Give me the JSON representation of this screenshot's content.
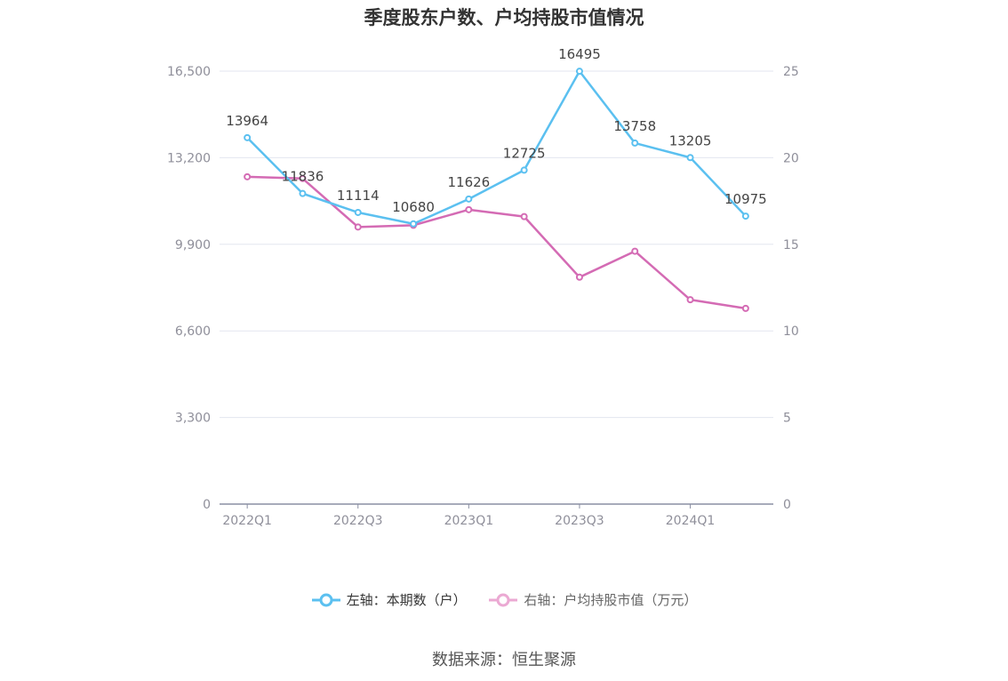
{
  "chart_data": {
    "type": "line",
    "title": "季度股东户数、户均持股市值情况",
    "categories": [
      "2022Q1",
      "2022Q2",
      "2022Q3",
      "2022Q4",
      "2023Q1",
      "2023Q2",
      "2023Q3",
      "2023Q4",
      "2024Q1",
      "2024Q2"
    ],
    "x_tick_labels": [
      "2022Q1",
      "2022Q3",
      "2023Q1",
      "2023Q3",
      "2024Q1"
    ],
    "left_axis": {
      "ylim": [
        0,
        16500
      ],
      "ticks": [
        "0",
        "3,300",
        "6,600",
        "9,900",
        "13,200",
        "16,500"
      ],
      "tick_values": [
        0,
        3300,
        6600,
        9900,
        13200,
        16500
      ]
    },
    "right_axis": {
      "ylim": [
        0,
        25
      ],
      "ticks": [
        "0",
        "5",
        "10",
        "15",
        "20",
        "25"
      ],
      "tick_values": [
        0,
        5,
        10,
        15,
        20,
        25
      ]
    },
    "series": [
      {
        "name": "左轴：本期数（户）",
        "axis": "left",
        "color": "#5bc0f0",
        "values": [
          13964,
          11836,
          11114,
          10680,
          11626,
          12725,
          16495,
          13758,
          13205,
          10975
        ],
        "labels": [
          "13964",
          "11836",
          "11114",
          "10680",
          "11626",
          "12725",
          "16495",
          "13758",
          "13205",
          "10975"
        ]
      },
      {
        "name": "右轴：户均持股市值（万元）",
        "axis": "right",
        "color": "#d46bb4",
        "values": [
          18.9,
          18.8,
          16.0,
          16.1,
          17.0,
          16.6,
          13.1,
          14.6,
          11.8,
          11.3
        ]
      }
    ],
    "grid": true,
    "legend_position": "bottom"
  },
  "legend": {
    "left_label": "左轴：本期数（户）",
    "right_label": "右轴：户均持股市值（万元）"
  },
  "source": "数据来源：恒生聚源"
}
